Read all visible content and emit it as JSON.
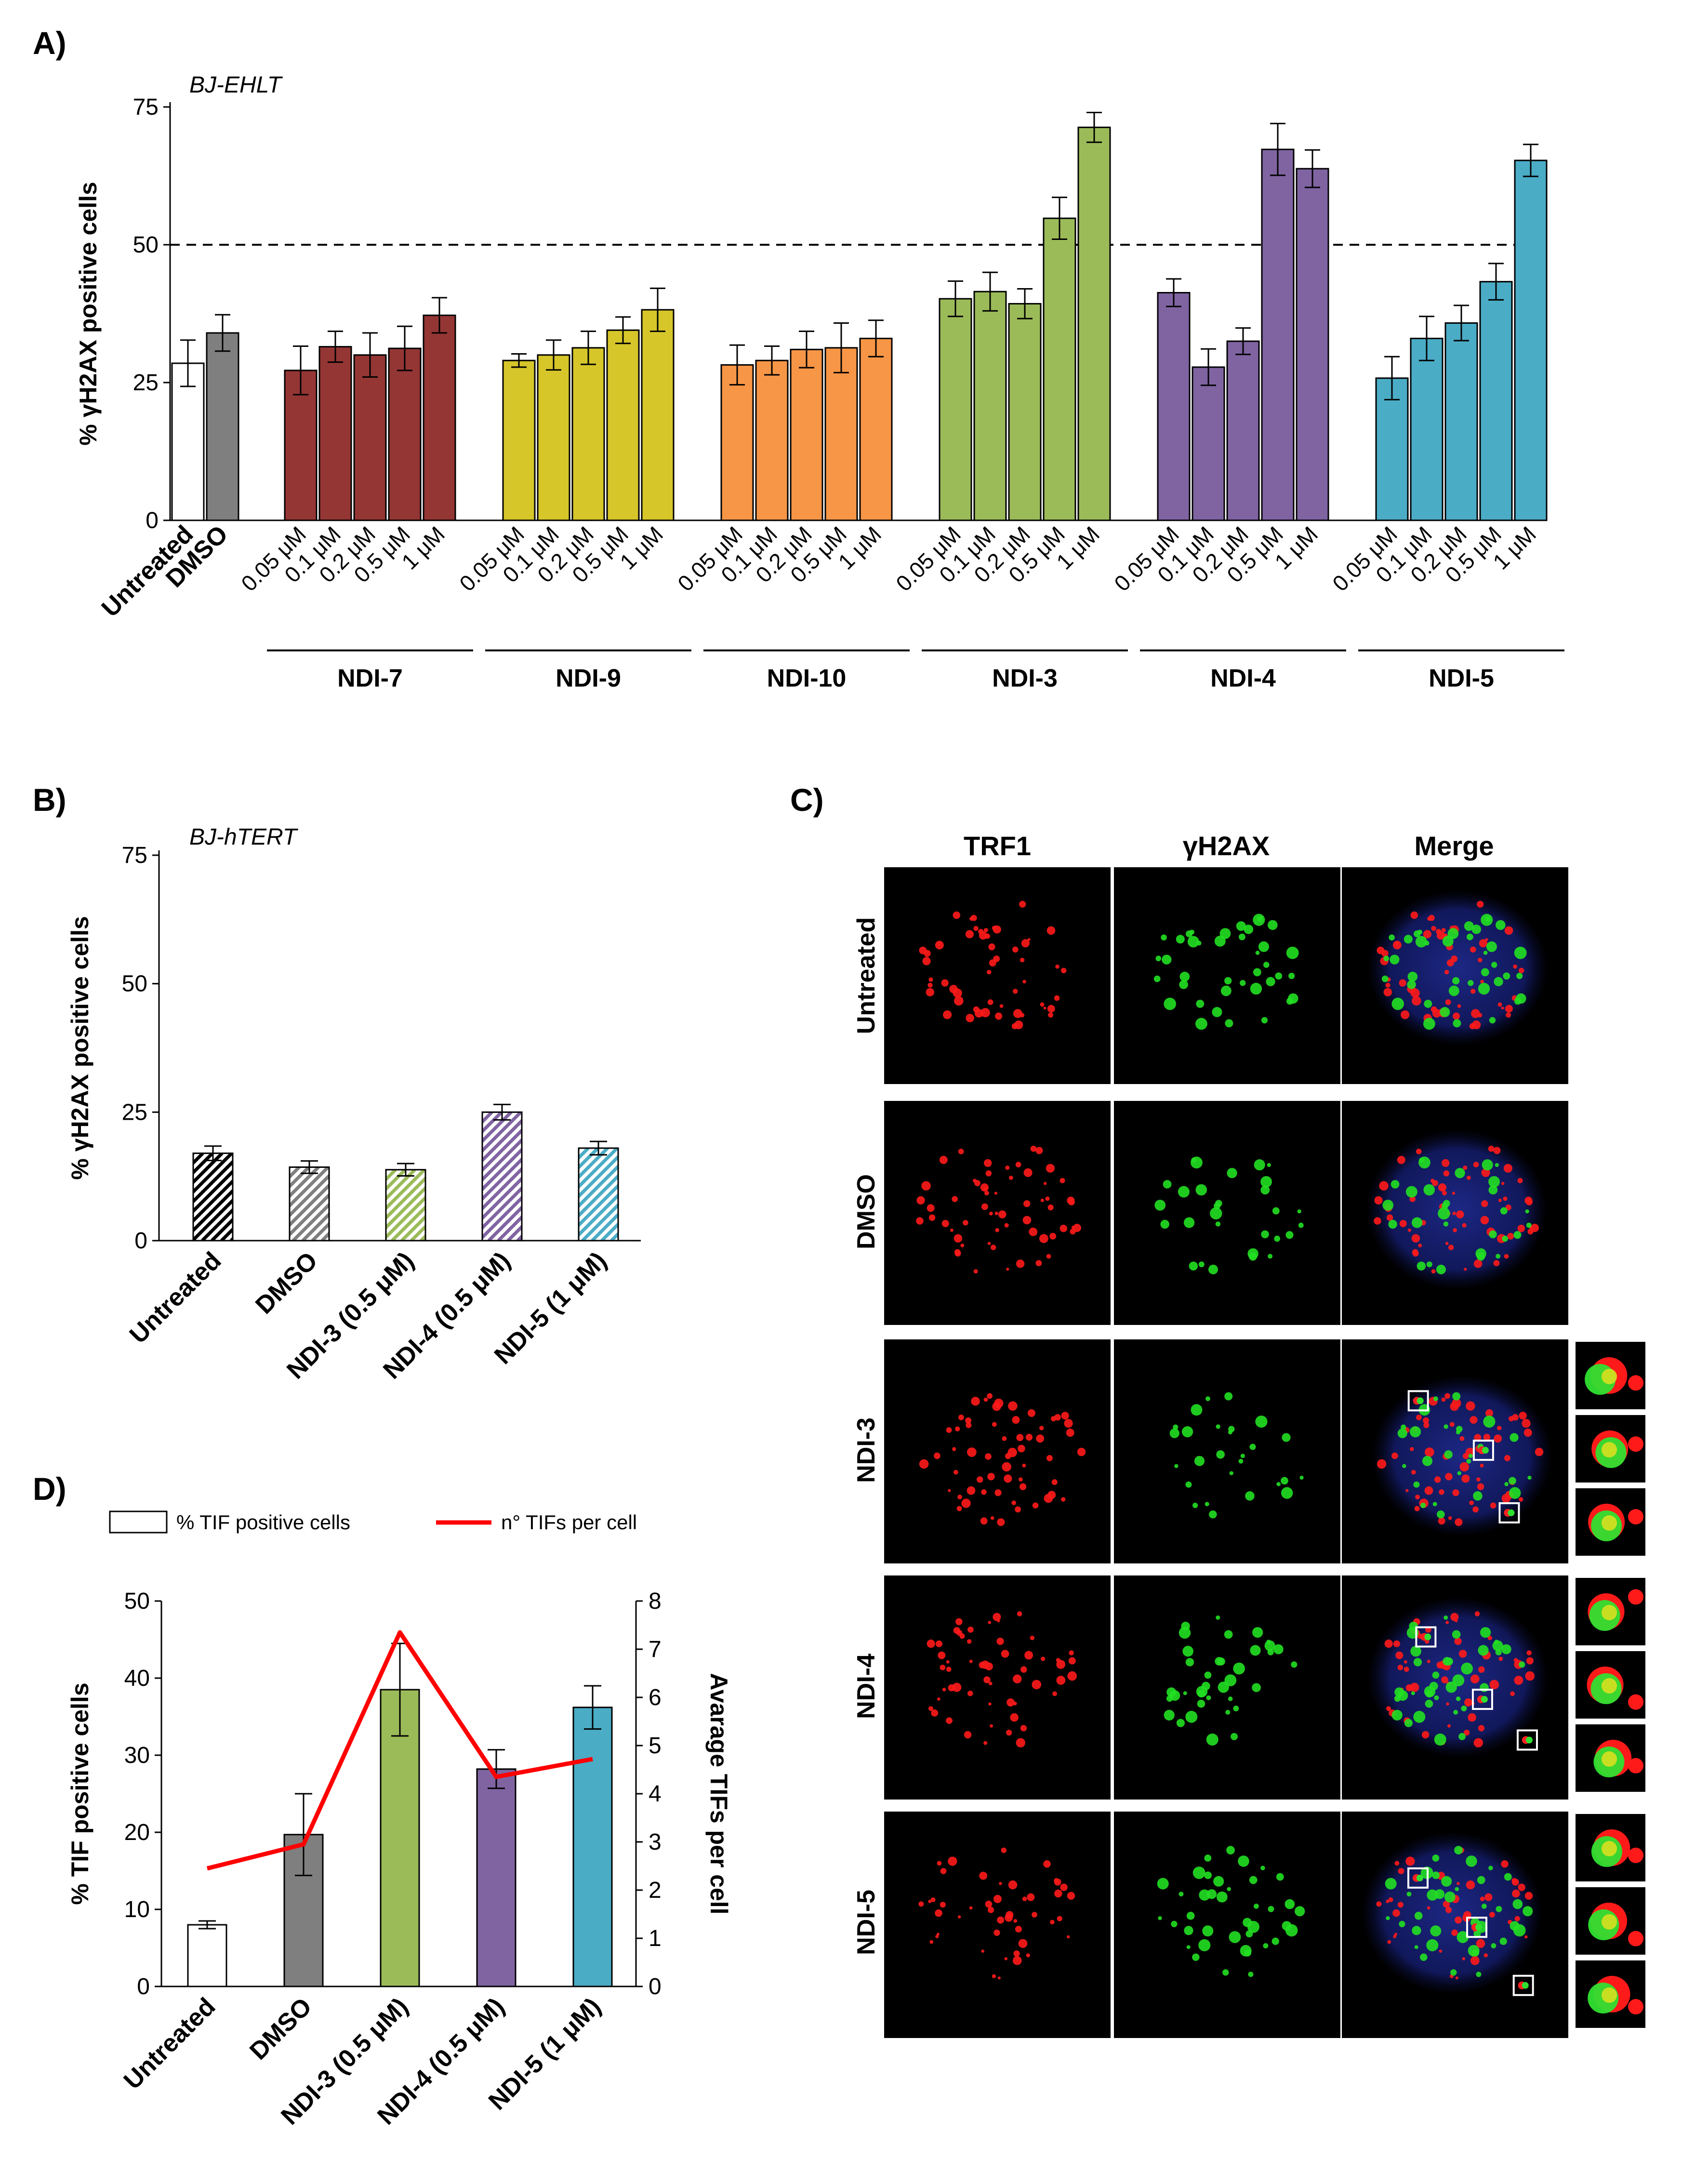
{
  "colors": {
    "untreated": "#ffffff",
    "dmso": "#7f7f7f",
    "ndi7": "#943634",
    "ndi9": "#d6c62a",
    "ndi10": "#f79646",
    "ndi3": "#9bbb59",
    "ndi4": "#8064a2",
    "ndi5": "#4bacc6",
    "tif_line": "#ff0000"
  },
  "panels": {
    "a": {
      "letter": "A)"
    },
    "b": {
      "letter": "B)"
    },
    "c": {
      "letter": "C)"
    },
    "d": {
      "letter": "D)"
    }
  },
  "chart_data": [
    {
      "id": "A",
      "type": "bar",
      "title": "BJ-EHLT",
      "ylabel": "% γH2AX positive cells",
      "ylim": [
        0,
        75
      ],
      "yticks": [
        0,
        25,
        50,
        75
      ],
      "reference_line": 50,
      "controls": [
        {
          "label": "Untreated",
          "value": 28.5,
          "error": 4.2,
          "color": "#ffffff",
          "label_color": "#000000"
        },
        {
          "label": "DMSO",
          "value": 34.0,
          "error": 3.3,
          "color": "#7f7f7f",
          "label_color": "#7f7f7f"
        }
      ],
      "doses": [
        "0.05 μM",
        "0.1 μM",
        "0.2 μM",
        "0.5 μM",
        "1 μM"
      ],
      "groups": [
        {
          "name": "NDI-7",
          "color": "#943634",
          "values": [
            27.2,
            31.5,
            30.0,
            31.2,
            37.2
          ],
          "errors": [
            4.4,
            2.8,
            4.0,
            4.0,
            3.2
          ]
        },
        {
          "name": "NDI-9",
          "color": "#d6c62a",
          "values": [
            29.0,
            30.0,
            31.3,
            34.5,
            38.2
          ],
          "errors": [
            1.2,
            2.7,
            3.0,
            2.4,
            3.9
          ]
        },
        {
          "name": "NDI-10",
          "color": "#f79646",
          "values": [
            28.2,
            29.0,
            31.0,
            31.3,
            33.0
          ],
          "errors": [
            3.6,
            2.6,
            3.3,
            4.5,
            3.3
          ]
        },
        {
          "name": "NDI-3",
          "color": "#9bbb59",
          "values": [
            40.2,
            41.5,
            39.3,
            54.8,
            71.3
          ],
          "errors": [
            3.2,
            3.5,
            2.7,
            3.8,
            2.7
          ]
        },
        {
          "name": "NDI-4",
          "color": "#8064a2",
          "values": [
            41.3,
            27.8,
            32.5,
            67.3,
            63.8
          ],
          "errors": [
            2.5,
            3.3,
            2.4,
            4.7,
            3.4
          ]
        },
        {
          "name": "NDI-5",
          "color": "#4bacc6",
          "values": [
            25.8,
            33.0,
            35.8,
            43.3,
            65.3
          ],
          "errors": [
            3.9,
            4.0,
            3.2,
            3.3,
            2.9
          ]
        }
      ]
    },
    {
      "id": "B",
      "type": "bar",
      "title": "BJ-hTERT",
      "ylabel": "% γH2AX positive cells",
      "ylim": [
        0,
        75
      ],
      "yticks": [
        0,
        25,
        50,
        75
      ],
      "hatched": true,
      "categories": [
        "Untreated",
        "DMSO",
        "NDI-3 (0.5 μM)",
        "NDI-4 (0.5 μM)",
        "NDI-5 (1 μM)"
      ],
      "category_colors": [
        "#000000",
        "#7f7f7f",
        "#9bbb59",
        "#8064a2",
        "#4bacc6"
      ],
      "values": [
        17.0,
        14.3,
        13.8,
        25.0,
        18.0
      ],
      "errors": [
        1.4,
        1.2,
        1.2,
        1.5,
        1.3
      ]
    },
    {
      "id": "D",
      "type": "bar",
      "ylabel": "% TIF positive cells",
      "y2label": "Avarage TIFs per cell",
      "ylim": [
        0,
        50
      ],
      "yticks": [
        0,
        10,
        20,
        30,
        40,
        50
      ],
      "y2lim": [
        0,
        8
      ],
      "y2ticks": [
        0,
        1,
        2,
        3,
        4,
        5,
        6,
        7,
        8
      ],
      "legend": {
        "bars": "% TIF positive  cells",
        "line": "n° TIFs per cell",
        "placement": "top"
      },
      "categories": [
        "Untreated",
        "DMSO",
        "NDI-3 (0.5 μM)",
        "NDI-4 (0.5 μM)",
        "NDI-5 (1 μM)"
      ],
      "category_colors": [
        "#000000",
        "#7f7f7f",
        "#9bbb59",
        "#8064a2",
        "#4bacc6"
      ],
      "bar_colors": [
        "#ffffff",
        "#7f7f7f",
        "#9bbb59",
        "#8064a2",
        "#4bacc6"
      ],
      "values": [
        8.0,
        19.7,
        38.5,
        28.2,
        36.2
      ],
      "errors": [
        0.5,
        5.3,
        6.0,
        2.5,
        2.8
      ],
      "line_values": [
        2.45,
        2.95,
        7.35,
        4.35,
        4.72
      ]
    }
  ],
  "micrographs": {
    "column_headers": [
      "TRF1",
      "γH2AX",
      "Merge"
    ],
    "row_labels": [
      {
        "text": "Untreated",
        "color": "#000000"
      },
      {
        "text": "DMSO",
        "color": "#7f7f7f"
      },
      {
        "text": "NDI-3",
        "color": "#9bbb59"
      },
      {
        "text": "NDI-4",
        "color": "#8064a2"
      },
      {
        "text": "NDI-5",
        "color": "#4bacc6"
      }
    ]
  }
}
